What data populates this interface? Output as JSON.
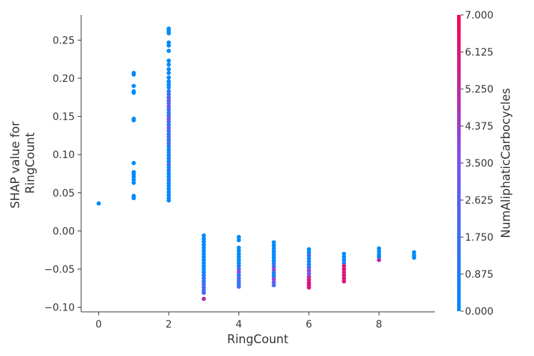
{
  "chart_data": {
    "type": "scatter",
    "xlabel": "RingCount",
    "ylabel_lines": [
      "SHAP value for",
      "RingCount"
    ],
    "xlim": [
      -0.5,
      9.6
    ],
    "ylim": [
      -0.106,
      0.283
    ],
    "xticks": [
      0,
      2,
      4,
      6,
      8
    ],
    "xtick_labels": [
      "0",
      "2",
      "4",
      "6",
      "8"
    ],
    "yticks": [
      -0.1,
      -0.05,
      0.0,
      0.05,
      0.1,
      0.15,
      0.2,
      0.25
    ],
    "ytick_labels": [
      "−0.10",
      "−0.05",
      "0.00",
      "0.05",
      "0.10",
      "0.15",
      "0.20",
      "0.25"
    ],
    "colorbar": {
      "label": "NumAliphaticCarbocycles",
      "min": 0.0,
      "max": 7.0,
      "ticks": [
        0.0,
        0.875,
        1.75,
        2.625,
        3.5,
        4.375,
        5.25,
        6.125,
        7.0
      ],
      "tick_labels": [
        "0.000",
        "0.875",
        "1.750",
        "2.625",
        "3.500",
        "4.375",
        "5.250",
        "6.125",
        "7.000"
      ],
      "color_low": "#008afb",
      "color_mid": "#7c52f0",
      "color_high": "#ff0052"
    },
    "points": [
      {
        "x": 0,
        "y": 0.036,
        "c": 0
      },
      {
        "x": 1,
        "y": 0.207,
        "c": 0
      },
      {
        "x": 1,
        "y": 0.205,
        "c": 0
      },
      {
        "x": 1,
        "y": 0.19,
        "c": 0
      },
      {
        "x": 1,
        "y": 0.183,
        "c": 0
      },
      {
        "x": 1,
        "y": 0.181,
        "c": 0
      },
      {
        "x": 1,
        "y": 0.147,
        "c": 0
      },
      {
        "x": 1,
        "y": 0.145,
        "c": 0
      },
      {
        "x": 1,
        "y": 0.089,
        "c": 0
      },
      {
        "x": 1,
        "y": 0.077,
        "c": 0
      },
      {
        "x": 1,
        "y": 0.074,
        "c": 0
      },
      {
        "x": 1,
        "y": 0.071,
        "c": 0
      },
      {
        "x": 1,
        "y": 0.067,
        "c": 0
      },
      {
        "x": 1,
        "y": 0.063,
        "c": 0
      },
      {
        "x": 1,
        "y": 0.046,
        "c": 0
      },
      {
        "x": 1,
        "y": 0.043,
        "c": 0
      },
      {
        "x": 2,
        "y": 0.265,
        "c": 0
      },
      {
        "x": 2,
        "y": 0.262,
        "c": 0
      },
      {
        "x": 2,
        "y": 0.259,
        "c": 0
      },
      {
        "x": 2,
        "y": 0.247,
        "c": 0
      },
      {
        "x": 2,
        "y": 0.243,
        "c": 0
      },
      {
        "x": 2,
        "y": 0.236,
        "c": 0
      },
      {
        "x": 2,
        "y": 0.223,
        "c": 0
      },
      {
        "x": 2,
        "y": 0.218,
        "c": 0
      },
      {
        "x": 2,
        "y": 0.212,
        "c": 0
      },
      {
        "x": 2,
        "y": 0.207,
        "c": 0
      },
      {
        "x": 2,
        "y": 0.201,
        "c": 0
      },
      {
        "x": 2,
        "y": 0.196,
        "c": 0
      },
      {
        "x": 2,
        "y": 0.192,
        "c": 0
      },
      {
        "x": 2,
        "y": 0.188,
        "c": 0
      },
      {
        "x": 2,
        "y": 0.183,
        "c": 1
      },
      {
        "x": 2,
        "y": 0.179,
        "c": 2
      },
      {
        "x": 2,
        "y": 0.175,
        "c": 2
      },
      {
        "x": 2,
        "y": 0.171,
        "c": 3
      },
      {
        "x": 2,
        "y": 0.167,
        "c": 2
      },
      {
        "x": 2,
        "y": 0.163,
        "c": 3
      },
      {
        "x": 2,
        "y": 0.159,
        "c": 2
      },
      {
        "x": 2,
        "y": 0.155,
        "c": 1
      },
      {
        "x": 2,
        "y": 0.151,
        "c": 2
      },
      {
        "x": 2,
        "y": 0.147,
        "c": 3
      },
      {
        "x": 2,
        "y": 0.143,
        "c": 2
      },
      {
        "x": 2,
        "y": 0.139,
        "c": 1
      },
      {
        "x": 2,
        "y": 0.135,
        "c": 3
      },
      {
        "x": 2,
        "y": 0.131,
        "c": 2
      },
      {
        "x": 2,
        "y": 0.127,
        "c": 1
      },
      {
        "x": 2,
        "y": 0.123,
        "c": 2
      },
      {
        "x": 2,
        "y": 0.119,
        "c": 1
      },
      {
        "x": 2,
        "y": 0.115,
        "c": 2
      },
      {
        "x": 2,
        "y": 0.111,
        "c": 1
      },
      {
        "x": 2,
        "y": 0.107,
        "c": 0
      },
      {
        "x": 2,
        "y": 0.103,
        "c": 1
      },
      {
        "x": 2,
        "y": 0.099,
        "c": 0
      },
      {
        "x": 2,
        "y": 0.095,
        "c": 1
      },
      {
        "x": 2,
        "y": 0.091,
        "c": 0
      },
      {
        "x": 2,
        "y": 0.087,
        "c": 2
      },
      {
        "x": 2,
        "y": 0.083,
        "c": 0
      },
      {
        "x": 2,
        "y": 0.079,
        "c": 1
      },
      {
        "x": 2,
        "y": 0.075,
        "c": 0
      },
      {
        "x": 2,
        "y": 0.071,
        "c": 0
      },
      {
        "x": 2,
        "y": 0.067,
        "c": 1
      },
      {
        "x": 2,
        "y": 0.063,
        "c": 0
      },
      {
        "x": 2,
        "y": 0.059,
        "c": 0
      },
      {
        "x": 2,
        "y": 0.055,
        "c": 0
      },
      {
        "x": 2,
        "y": 0.051,
        "c": 0
      },
      {
        "x": 2,
        "y": 0.047,
        "c": 0
      },
      {
        "x": 2,
        "y": 0.043,
        "c": 0
      },
      {
        "x": 2,
        "y": 0.04,
        "c": 0
      },
      {
        "x": 3,
        "y": -0.006,
        "c": 0
      },
      {
        "x": 3,
        "y": -0.01,
        "c": 0
      },
      {
        "x": 3,
        "y": -0.014,
        "c": 0
      },
      {
        "x": 3,
        "y": -0.018,
        "c": 0
      },
      {
        "x": 3,
        "y": -0.022,
        "c": 0
      },
      {
        "x": 3,
        "y": -0.026,
        "c": 0
      },
      {
        "x": 3,
        "y": -0.03,
        "c": 0
      },
      {
        "x": 3,
        "y": -0.034,
        "c": 0
      },
      {
        "x": 3,
        "y": -0.038,
        "c": 0
      },
      {
        "x": 3,
        "y": -0.042,
        "c": 0
      },
      {
        "x": 3,
        "y": -0.046,
        "c": 0
      },
      {
        "x": 3,
        "y": -0.05,
        "c": 0
      },
      {
        "x": 3,
        "y": -0.054,
        "c": 0
      },
      {
        "x": 3,
        "y": -0.058,
        "c": 1
      },
      {
        "x": 3,
        "y": -0.062,
        "c": 1
      },
      {
        "x": 3,
        "y": -0.066,
        "c": 1
      },
      {
        "x": 3,
        "y": -0.07,
        "c": 2
      },
      {
        "x": 3,
        "y": -0.074,
        "c": 2
      },
      {
        "x": 3,
        "y": -0.078,
        "c": 2
      },
      {
        "x": 3,
        "y": -0.081,
        "c": 2
      },
      {
        "x": 3,
        "y": -0.089,
        "c": 5
      },
      {
        "x": 4,
        "y": -0.008,
        "c": 0
      },
      {
        "x": 4,
        "y": -0.012,
        "c": 0
      },
      {
        "x": 4,
        "y": -0.022,
        "c": 0
      },
      {
        "x": 4,
        "y": -0.026,
        "c": 0
      },
      {
        "x": 4,
        "y": -0.03,
        "c": 0
      },
      {
        "x": 4,
        "y": -0.034,
        "c": 0
      },
      {
        "x": 4,
        "y": -0.038,
        "c": 0
      },
      {
        "x": 4,
        "y": -0.042,
        "c": 0
      },
      {
        "x": 4,
        "y": -0.046,
        "c": 1
      },
      {
        "x": 4,
        "y": -0.05,
        "c": 2
      },
      {
        "x": 4,
        "y": -0.054,
        "c": 4
      },
      {
        "x": 4,
        "y": -0.058,
        "c": 1
      },
      {
        "x": 4,
        "y": -0.062,
        "c": 2
      },
      {
        "x": 4,
        "y": -0.066,
        "c": 2
      },
      {
        "x": 4,
        "y": -0.07,
        "c": 1
      },
      {
        "x": 4,
        "y": -0.073,
        "c": 2
      },
      {
        "x": 5,
        "y": -0.015,
        "c": 0
      },
      {
        "x": 5,
        "y": -0.019,
        "c": 0
      },
      {
        "x": 5,
        "y": -0.023,
        "c": 0
      },
      {
        "x": 5,
        "y": -0.027,
        "c": 0
      },
      {
        "x": 5,
        "y": -0.031,
        "c": 0
      },
      {
        "x": 5,
        "y": -0.035,
        "c": 0
      },
      {
        "x": 5,
        "y": -0.039,
        "c": 0
      },
      {
        "x": 5,
        "y": -0.043,
        "c": 1
      },
      {
        "x": 5,
        "y": -0.047,
        "c": 2
      },
      {
        "x": 5,
        "y": -0.051,
        "c": 4
      },
      {
        "x": 5,
        "y": -0.055,
        "c": 1
      },
      {
        "x": 5,
        "y": -0.059,
        "c": 0
      },
      {
        "x": 5,
        "y": -0.063,
        "c": 4
      },
      {
        "x": 5,
        "y": -0.067,
        "c": 3
      },
      {
        "x": 5,
        "y": -0.071,
        "c": 2
      },
      {
        "x": 6,
        "y": -0.024,
        "c": 0
      },
      {
        "x": 6,
        "y": -0.028,
        "c": 0
      },
      {
        "x": 6,
        "y": -0.032,
        "c": 2
      },
      {
        "x": 6,
        "y": -0.036,
        "c": 0
      },
      {
        "x": 6,
        "y": -0.04,
        "c": 1
      },
      {
        "x": 6,
        "y": -0.044,
        "c": 0
      },
      {
        "x": 6,
        "y": -0.048,
        "c": 2
      },
      {
        "x": 6,
        "y": -0.052,
        "c": 4
      },
      {
        "x": 6,
        "y": -0.056,
        "c": 3
      },
      {
        "x": 6,
        "y": -0.06,
        "c": 5
      },
      {
        "x": 6,
        "y": -0.064,
        "c": 6
      },
      {
        "x": 6,
        "y": -0.068,
        "c": 6
      },
      {
        "x": 6,
        "y": -0.071,
        "c": 6
      },
      {
        "x": 6,
        "y": -0.074,
        "c": 6
      },
      {
        "x": 7,
        "y": -0.03,
        "c": 0
      },
      {
        "x": 7,
        "y": -0.034,
        "c": 0
      },
      {
        "x": 7,
        "y": -0.038,
        "c": 0
      },
      {
        "x": 7,
        "y": -0.042,
        "c": 1
      },
      {
        "x": 7,
        "y": -0.046,
        "c": 6
      },
      {
        "x": 7,
        "y": -0.05,
        "c": 6
      },
      {
        "x": 7,
        "y": -0.054,
        "c": 6
      },
      {
        "x": 7,
        "y": -0.058,
        "c": 6
      },
      {
        "x": 7,
        "y": -0.062,
        "c": 6
      },
      {
        "x": 7,
        "y": -0.066,
        "c": 6
      },
      {
        "x": 8,
        "y": -0.023,
        "c": 0
      },
      {
        "x": 8,
        "y": -0.027,
        "c": 0
      },
      {
        "x": 8,
        "y": -0.031,
        "c": 0
      },
      {
        "x": 8,
        "y": -0.034,
        "c": 0
      },
      {
        "x": 8,
        "y": -0.038,
        "c": 5
      },
      {
        "x": 9,
        "y": -0.028,
        "c": 0
      },
      {
        "x": 9,
        "y": -0.032,
        "c": 0
      },
      {
        "x": 9,
        "y": -0.035,
        "c": 0
      }
    ]
  }
}
